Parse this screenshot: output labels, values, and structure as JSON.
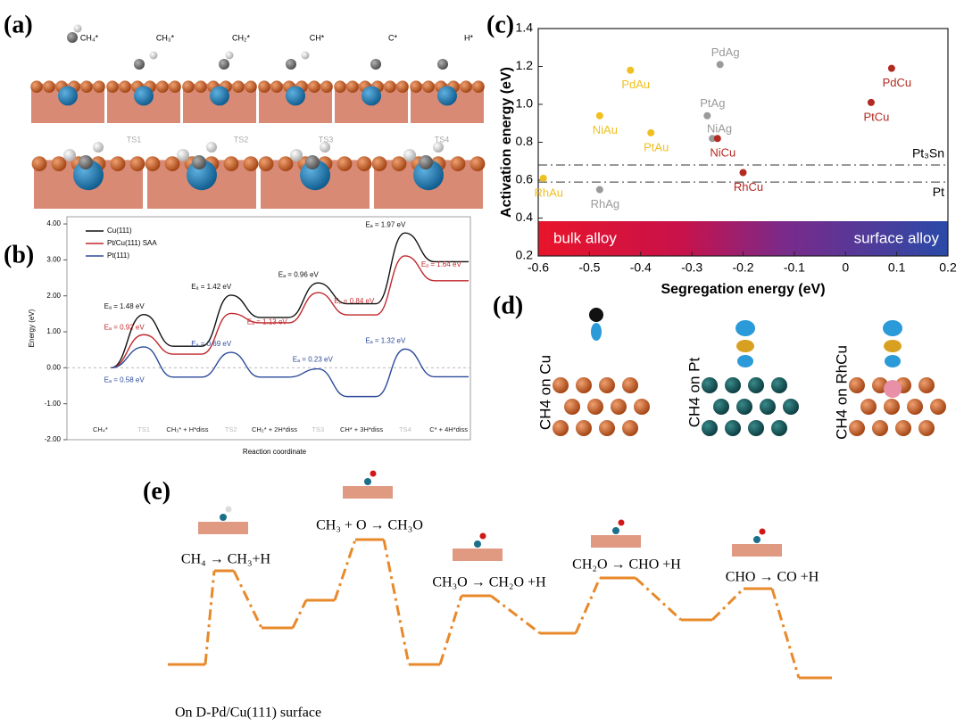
{
  "panels": {
    "a": {
      "label": "(a)",
      "species": [
        "CH₄*",
        "CH₃*",
        "CH₂*",
        "CH*",
        "C*",
        "H*"
      ],
      "transition_states": [
        "TS1",
        "TS2",
        "TS3",
        "TS4"
      ]
    },
    "d": {
      "label": "(d)",
      "captions": [
        "CH4 on Cu",
        "CH4 on Pt",
        "CH4 on RhCu"
      ]
    },
    "e": {
      "label": "(e)",
      "steps": [
        "CH₄ → CH₃+H",
        "CH₃ + O → CH₃O",
        "CH₃O → CH₂O +H",
        "CH₂O → CHO +H",
        "CHO → CO +H"
      ],
      "caption": "On D-Pd/Cu(111) surface"
    }
  },
  "chart_data": [
    {
      "panel": "(b)",
      "type": "line",
      "xlabel": "Reaction coordinate",
      "ylabel": "Energy (eV)",
      "categories": [
        "CH₄*",
        "TS1",
        "CH₃* + H*diss",
        "TS2",
        "CH₂* + 2H*diss",
        "TS3",
        "CH* + 3H*diss",
        "TS4",
        "C* + 4H*diss"
      ],
      "ylim": [
        -2,
        4.2
      ],
      "yticks": [
        {
          "value": 4,
          "label": "4.00"
        },
        {
          "value": 3,
          "label": "3.00"
        },
        {
          "value": 2,
          "label": "2.00"
        },
        {
          "value": 1,
          "label": "1.00"
        },
        {
          "value": 0,
          "label": "0.00"
        },
        {
          "value": -1,
          "label": "-1.00"
        },
        {
          "value": -2,
          "label": "-2.00"
        }
      ],
      "legend": "upper left",
      "series": [
        {
          "name": "Cu(111)",
          "color": "#111111",
          "values": [
            0,
            1.48,
            0.6,
            2.02,
            1.4,
            2.36,
            1.78,
            3.75,
            2.95
          ],
          "barrier_labels": [
            "Eₐ = 1.48 eV",
            "Eₐ = 1.42 eV",
            "Eₐ = 0.96 eV",
            "Eₐ = 1.97 eV"
          ]
        },
        {
          "name": "Pt/Cu(111) SAA",
          "color": "#c0282d",
          "values": [
            0,
            0.92,
            0.38,
            1.51,
            1.25,
            2.09,
            1.47,
            3.11,
            2.42
          ],
          "barrier_labels": [
            "Eₐ = 0.92 eV",
            "Eₐ = 1.13 eV",
            "Eₐ = 0.84 eV",
            "Eₐ = 1.64 eV"
          ]
        },
        {
          "name": "Pt(111)",
          "color": "#2b4a9a",
          "values": [
            0,
            0.58,
            -0.26,
            0.43,
            -0.26,
            -0.03,
            -0.8,
            0.52,
            -0.25
          ],
          "barrier_labels": [
            "Eₐ = 0.58 eV",
            "Eₐ = 0.69 eV",
            "Eₐ = 0.23 eV",
            "Eₐ = 1.32 eV"
          ]
        }
      ]
    },
    {
      "panel": "(c)",
      "type": "scatter",
      "xlabel": "Segregation energy (eV)",
      "ylabel": "Activation energy (eV)",
      "xlim": [
        -0.6,
        0.2
      ],
      "xticks": [
        -0.6,
        -0.5,
        -0.4,
        -0.3,
        -0.2,
        -0.1,
        0,
        0.1,
        0.2
      ],
      "ylim": [
        0.2,
        1.4
      ],
      "yticks": [
        0.2,
        0.4,
        0.6,
        0.8,
        {
          "value": 1,
          "label": "1.0"
        },
        1.2,
        1.4
      ],
      "points": [
        {
          "label": "PdAg",
          "x": -0.245,
          "y": 1.21,
          "color": "#9a9a9a"
        },
        {
          "label": "PdAu",
          "x": -0.42,
          "y": 1.18,
          "color": "#f0c020"
        },
        {
          "label": "NiAu",
          "x": -0.48,
          "y": 0.94,
          "color": "#f0c020"
        },
        {
          "label": "PtAu",
          "x": -0.38,
          "y": 0.85,
          "color": "#f0c020"
        },
        {
          "label": "RhAu",
          "x": -0.59,
          "y": 0.61,
          "color": "#f0c020"
        },
        {
          "label": "RhAg",
          "x": -0.48,
          "y": 0.55,
          "color": "#9a9a9a"
        },
        {
          "label": "PtAg",
          "x": -0.27,
          "y": 0.94,
          "color": "#9a9a9a"
        },
        {
          "label": "NiAg",
          "x": -0.26,
          "y": 0.82,
          "color": "#9a9a9a"
        },
        {
          "label": "NiCu",
          "x": -0.25,
          "y": 0.82,
          "color": "#b22a22"
        },
        {
          "label": "RhCu",
          "x": -0.2,
          "y": 0.64,
          "color": "#b22a22"
        },
        {
          "label": "PtCu",
          "x": 0.05,
          "y": 1.01,
          "color": "#b22a22"
        },
        {
          "label": "PdCu",
          "x": 0.09,
          "y": 1.19,
          "color": "#b22a22"
        }
      ],
      "reference_lines": [
        {
          "label": "Pt₃Sn",
          "y": 0.68
        },
        {
          "label": "Pt",
          "y": 0.59
        }
      ],
      "band_labels": [
        "bulk alloy",
        "surface alloy"
      ]
    }
  ]
}
